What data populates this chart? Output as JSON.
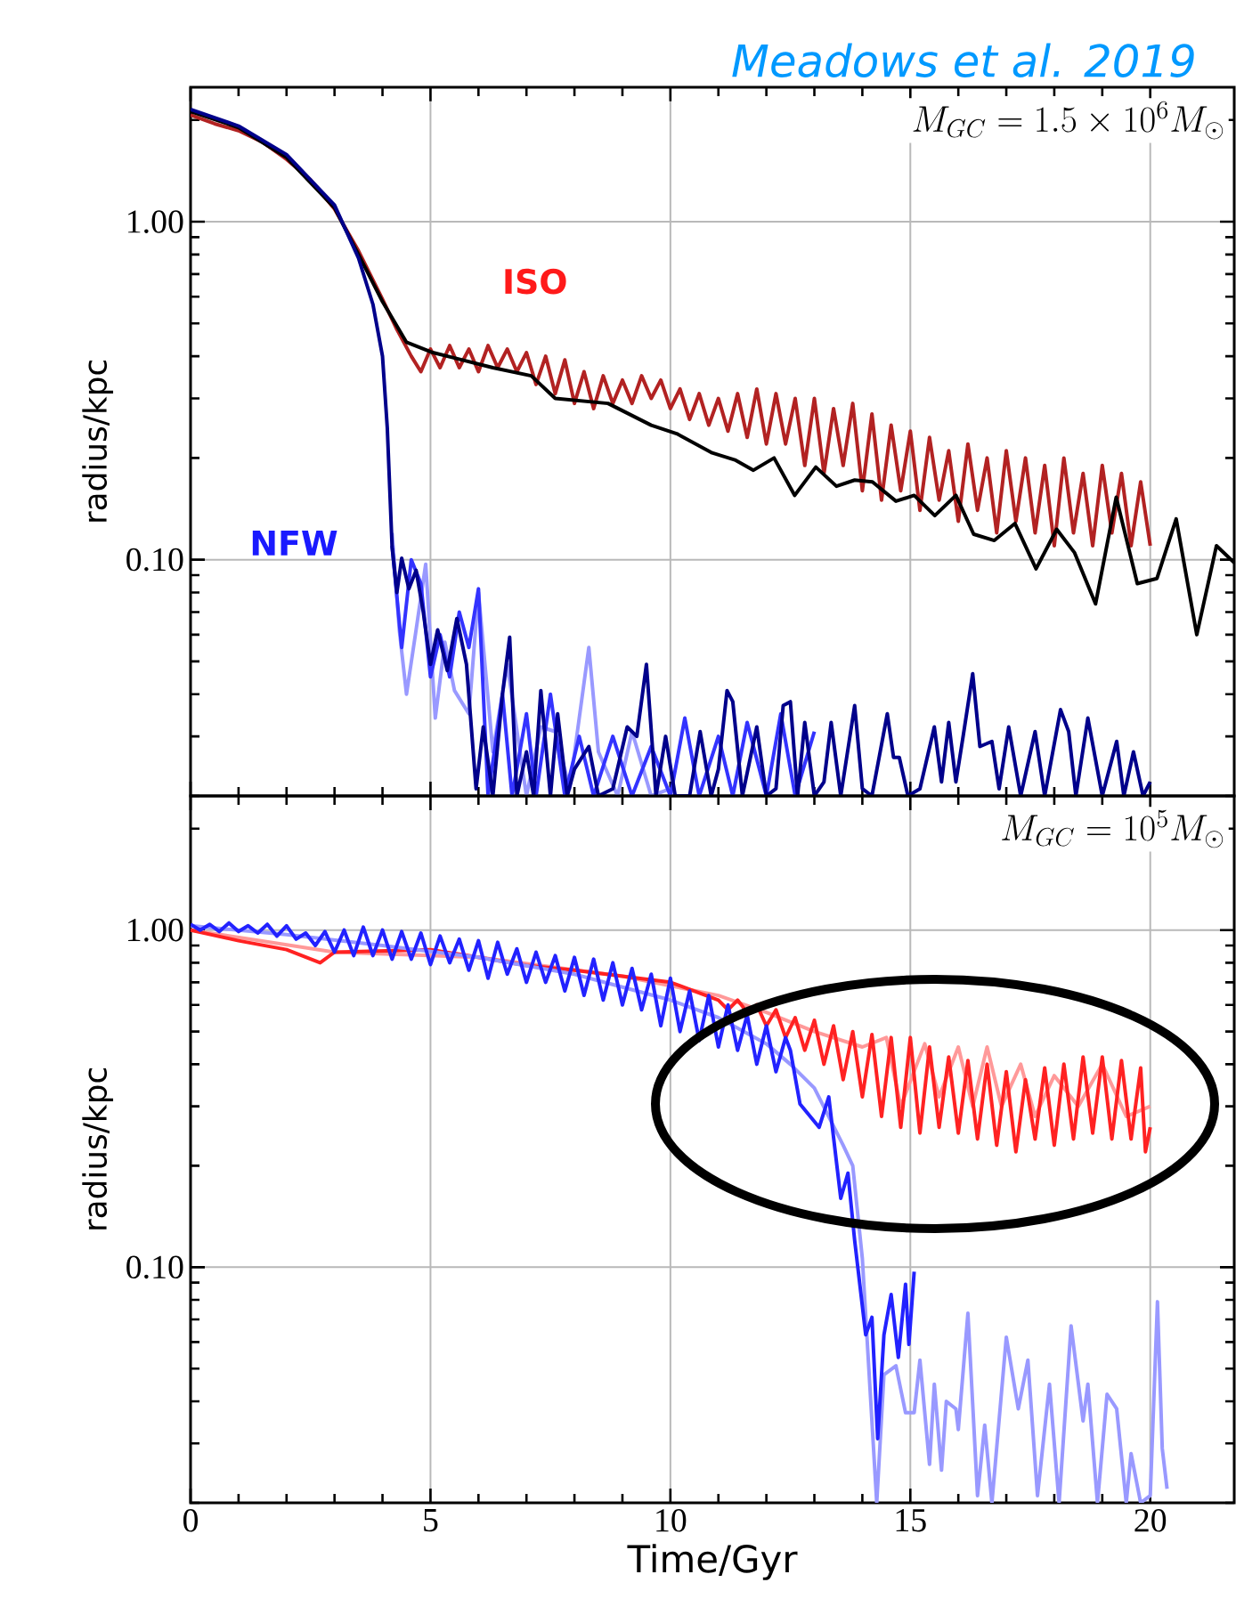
{
  "chart_data": [
    {
      "type": "line",
      "ylabel": "radius/kpc",
      "log": "y",
      "grid": true,
      "tick_labels": "y",
      "xlim": [
        0,
        21.75
      ],
      "ylim": [
        0.02,
        2.5
      ],
      "xticks": [
        0,
        5,
        10,
        15,
        20
      ],
      "yticks": [
        {
          "value": 1,
          "label": "1.00"
        },
        {
          "value": 0.1,
          "label": "0.10"
        },
        {
          "value": 0.02,
          "label": null
        },
        {
          "value": 0.03,
          "label": null
        },
        {
          "value": 0.04,
          "label": null
        },
        {
          "value": 0.05,
          "label": null
        },
        {
          "value": 0.06,
          "label": null
        },
        {
          "value": 0.07,
          "label": null
        },
        {
          "value": 0.08,
          "label": null
        },
        {
          "value": 0.09,
          "label": null
        },
        {
          "value": 0.2,
          "label": null
        },
        {
          "value": 0.3,
          "label": null
        },
        {
          "value": 0.4,
          "label": null
        },
        {
          "value": 0.5,
          "label": null
        },
        {
          "value": 0.6,
          "label": null
        },
        {
          "value": 0.7,
          "label": null
        },
        {
          "value": 0.8,
          "label": null
        },
        {
          "value": 0.9,
          "label": null
        },
        {
          "value": 2,
          "label": null
        }
      ],
      "annotations": [
        "M_{GC} = 1.5 \\times 10^6 M_\\odot",
        "Meadows et al. 2019",
        "ISO",
        "NFW"
      ],
      "series": [
        {
          "color": "#b22222",
          "x": [
            0,
            0.5,
            1,
            1.5,
            2,
            2.5,
            3,
            3.5,
            4,
            4.3,
            4.6,
            4.8,
            5.0,
            5.2,
            5.4,
            5.6,
            5.8,
            6.0,
            6.2,
            6.4,
            6.6,
            6.8,
            7.0,
            7.2,
            7.4,
            7.6,
            7.8,
            8.0,
            8.2,
            8.4,
            8.6,
            8.8,
            9.0,
            9.2,
            9.4,
            9.6,
            9.8,
            10.0,
            10.2,
            10.4,
            10.6,
            10.8,
            11.0,
            11.2,
            11.4,
            11.6,
            11.8,
            12.0,
            12.2,
            12.4,
            12.6,
            12.8,
            13.0,
            13.2,
            13.4,
            13.6,
            13.8,
            14.0,
            14.2,
            14.4,
            14.6,
            14.8,
            15.0,
            15.2,
            15.4,
            15.6,
            15.8,
            16.0,
            16.2,
            16.4,
            16.6,
            16.8,
            17.0,
            17.2,
            17.4,
            17.6,
            17.8,
            18.0,
            18.2,
            18.4,
            18.6,
            18.8,
            19.0,
            19.2,
            19.4,
            19.6,
            19.8,
            20.0
          ],
          "values": [
            2.07,
            1.95,
            1.86,
            1.72,
            1.53,
            1.33,
            1.09,
            0.82,
            0.59,
            0.48,
            0.4,
            0.36,
            0.42,
            0.37,
            0.43,
            0.37,
            0.42,
            0.36,
            0.43,
            0.37,
            0.42,
            0.36,
            0.41,
            0.33,
            0.4,
            0.31,
            0.39,
            0.29,
            0.36,
            0.28,
            0.35,
            0.29,
            0.34,
            0.29,
            0.35,
            0.3,
            0.34,
            0.28,
            0.32,
            0.26,
            0.31,
            0.25,
            0.3,
            0.24,
            0.31,
            0.23,
            0.32,
            0.22,
            0.31,
            0.22,
            0.3,
            0.19,
            0.3,
            0.18,
            0.28,
            0.19,
            0.29,
            0.16,
            0.27,
            0.15,
            0.25,
            0.16,
            0.24,
            0.14,
            0.23,
            0.15,
            0.21,
            0.13,
            0.22,
            0.14,
            0.2,
            0.12,
            0.21,
            0.13,
            0.2,
            0.12,
            0.19,
            0.11,
            0.2,
            0.12,
            0.18,
            0.11,
            0.19,
            0.12,
            0.18,
            0.11,
            0.17,
            0.11
          ]
        },
        {
          "color": "#000000",
          "x": [
            0,
            1,
            2,
            3,
            3.5,
            4,
            4.5,
            5.05,
            6.3,
            7.1,
            7.6,
            8.7,
            9.6,
            10.13,
            10.87,
            11.36,
            11.73,
            12.16,
            12.59,
            13.03,
            13.46,
            13.84,
            14.21,
            14.7,
            15.08,
            15.51,
            15.95,
            16.32,
            16.75,
            17.18,
            17.62,
            18.05,
            18.42,
            18.86,
            19.29,
            19.73,
            20.14,
            20.54,
            20.97,
            21.38,
            21.75
          ],
          "values": [
            2.12,
            1.9,
            1.55,
            1.1,
            0.8,
            0.58,
            0.44,
            0.41,
            0.37,
            0.35,
            0.3,
            0.29,
            0.25,
            0.236,
            0.207,
            0.197,
            0.184,
            0.2,
            0.155,
            0.188,
            0.165,
            0.172,
            0.17,
            0.149,
            0.155,
            0.135,
            0.155,
            0.119,
            0.114,
            0.128,
            0.094,
            0.123,
            0.105,
            0.074,
            0.153,
            0.085,
            0.088,
            0.132,
            0.06,
            0.11,
            0.098
          ]
        },
        {
          "color": "#9999ff",
          "x": [
            4.2,
            4.35,
            4.5,
            4.7,
            4.9,
            5.1,
            5.3,
            5.5,
            5.8,
            6.0,
            6.3,
            6.6,
            7.0,
            7.3,
            7.6,
            7.9,
            8.3,
            8.5,
            8.9,
            9.2,
            9.6,
            10.0
          ],
          "values": [
            0.12,
            0.062,
            0.04,
            0.062,
            0.097,
            0.034,
            0.057,
            0.041,
            0.035,
            0.08,
            0.027,
            0.049,
            0.02,
            0.032,
            0.031,
            0.021,
            0.055,
            0.027,
            0.02,
            0.031,
            0.02,
            0.021
          ]
        },
        {
          "color": "#3333ff",
          "x": [
            4.2,
            4.4,
            4.6,
            4.8,
            5.0,
            5.2,
            5.4,
            5.6,
            5.8,
            6.0,
            6.2,
            6.5,
            6.7,
            7.0,
            7.2,
            7.5,
            7.8,
            8.1,
            8.4,
            8.8,
            9.2,
            9.6,
            10.0,
            10.3,
            10.6,
            11.0,
            11.3,
            11.6,
            12.0,
            12.3,
            12.6,
            13.0
          ],
          "values": [
            0.11,
            0.055,
            0.1,
            0.085,
            0.045,
            0.06,
            0.045,
            0.07,
            0.055,
            0.082,
            0.02,
            0.04,
            0.02,
            0.035,
            0.02,
            0.04,
            0.02,
            0.03,
            0.02,
            0.03,
            0.02,
            0.028,
            0.02,
            0.034,
            0.02,
            0.03,
            0.02,
            0.033,
            0.02,
            0.035,
            0.02,
            0.031
          ]
        },
        {
          "color": "#00008b",
          "x": [
            0,
            1,
            2,
            3,
            3.5,
            3.8,
            4.0,
            4.1,
            4.2,
            4.3,
            4.4,
            4.55,
            4.7,
            4.85,
            5.0,
            5.15,
            5.35,
            5.55,
            5.75,
            5.95,
            6.1,
            6.3,
            6.5,
            6.65,
            6.8,
            7.0,
            7.15,
            7.3,
            7.5,
            7.65,
            7.85,
            8.0,
            8.3,
            8.5,
            8.8,
            9.1,
            9.3,
            9.5,
            9.7,
            9.9,
            10.1,
            10.4,
            10.62,
            10.85,
            11.0,
            11.18,
            11.3,
            11.5,
            11.8,
            12.0,
            12.2,
            12.35,
            12.5,
            12.65,
            12.8,
            13.0,
            13.2,
            13.35,
            13.55,
            13.84,
            14.0,
            14.2,
            14.52,
            14.65,
            14.77,
            14.95,
            15.2,
            15.5,
            15.65,
            15.8,
            15.95,
            16.1,
            16.3,
            16.45,
            16.7,
            16.85,
            17.05,
            17.3,
            17.6,
            17.8,
            18.13,
            18.3,
            18.45,
            18.7,
            19.0,
            19.3,
            19.45,
            19.65,
            19.85,
            20.0
          ],
          "values": [
            2.15,
            1.92,
            1.58,
            1.12,
            0.78,
            0.57,
            0.4,
            0.245,
            0.109,
            0.08,
            0.101,
            0.082,
            0.093,
            0.07,
            0.049,
            0.062,
            0.047,
            0.067,
            0.049,
            0.021,
            0.032,
            0.02,
            0.04,
            0.059,
            0.02,
            0.027,
            0.02,
            0.041,
            0.02,
            0.035,
            0.02,
            0.024,
            0.028,
            0.02,
            0.021,
            0.032,
            0.03,
            0.049,
            0.02,
            0.03,
            0.02,
            0.02,
            0.031,
            0.02,
            0.024,
            0.041,
            0.038,
            0.02,
            0.032,
            0.02,
            0.021,
            0.037,
            0.038,
            0.02,
            0.033,
            0.02,
            0.022,
            0.033,
            0.02,
            0.037,
            0.021,
            0.02,
            0.035,
            0.026,
            0.026,
            0.02,
            0.021,
            0.032,
            0.022,
            0.033,
            0.022,
            0.03,
            0.046,
            0.028,
            0.029,
            0.021,
            0.032,
            0.02,
            0.031,
            0.02,
            0.036,
            0.031,
            0.02,
            0.034,
            0.02,
            0.029,
            0.02,
            0.027,
            0.02,
            0.022
          ]
        }
      ]
    },
    {
      "type": "line",
      "ylabel": "radius/kpc",
      "xlabel": "Time/Gyr",
      "log": "y",
      "grid": true,
      "xlim": [
        0,
        21.75
      ],
      "ylim": [
        0.02,
        2.5
      ],
      "xticks": [
        0,
        5,
        10,
        15,
        20
      ],
      "yticks": [
        {
          "value": 1,
          "label": "1.00"
        },
        {
          "value": 0.1,
          "label": "0.10"
        },
        {
          "value": 0.02,
          "label": null
        },
        {
          "value": 0.03,
          "label": null
        },
        {
          "value": 0.04,
          "label": null
        },
        {
          "value": 0.05,
          "label": null
        },
        {
          "value": 0.06,
          "label": null
        },
        {
          "value": 0.07,
          "label": null
        },
        {
          "value": 0.08,
          "label": null
        },
        {
          "value": 0.09,
          "label": null
        },
        {
          "value": 0.2,
          "label": null
        },
        {
          "value": 0.3,
          "label": null
        },
        {
          "value": 0.4,
          "label": null
        },
        {
          "value": 0.5,
          "label": null
        },
        {
          "value": 0.6,
          "label": null
        },
        {
          "value": 0.7,
          "label": null
        },
        {
          "value": 0.8,
          "label": null
        },
        {
          "value": 0.9,
          "label": null
        },
        {
          "value": 2,
          "label": null
        }
      ],
      "annotations": [
        "M_{GC} = 10^5 M_\\odot"
      ],
      "series": [
        {
          "color": "#ff9999",
          "x": [
            0,
            3,
            6,
            9,
            11,
            12,
            13,
            14,
            14.5,
            14.8,
            15.3,
            15.6,
            16.0,
            16.3,
            16.6,
            16.9,
            17.3,
            17.6,
            18,
            18.5,
            19,
            19.5,
            20
          ],
          "values": [
            1.0,
            0.86,
            0.83,
            0.73,
            0.64,
            0.57,
            0.5,
            0.45,
            0.48,
            0.3,
            0.46,
            0.32,
            0.45,
            0.3,
            0.45,
            0.3,
            0.4,
            0.28,
            0.37,
            0.3,
            0.4,
            0.28,
            0.3
          ]
        },
        {
          "color": "#ff2222",
          "x": [
            0,
            1,
            2,
            2.7,
            3,
            5,
            6,
            7,
            8,
            9,
            10,
            11.0,
            11.2,
            11.4,
            11.6,
            11.8,
            12.0,
            12.2,
            12.4,
            12.6,
            12.8,
            13.0,
            13.2,
            13.4,
            13.6,
            13.8,
            14.0,
            14.2,
            14.4,
            14.6,
            14.8,
            15.0,
            15.2,
            15.4,
            15.6,
            15.8,
            16.0,
            16.2,
            16.4,
            16.6,
            16.8,
            17.0,
            17.2,
            17.4,
            17.6,
            17.8,
            18.0,
            18.2,
            18.4,
            18.6,
            18.8,
            19.0,
            19.2,
            19.4,
            19.6,
            19.8,
            19.9,
            20.0
          ],
          "values": [
            1.0,
            0.93,
            0.875,
            0.8,
            0.86,
            0.875,
            0.83,
            0.785,
            0.76,
            0.73,
            0.7,
            0.62,
            0.58,
            0.62,
            0.57,
            0.6,
            0.52,
            0.58,
            0.48,
            0.55,
            0.44,
            0.54,
            0.4,
            0.52,
            0.36,
            0.5,
            0.32,
            0.49,
            0.28,
            0.48,
            0.26,
            0.48,
            0.25,
            0.45,
            0.26,
            0.42,
            0.25,
            0.41,
            0.24,
            0.4,
            0.23,
            0.38,
            0.22,
            0.36,
            0.24,
            0.39,
            0.23,
            0.4,
            0.24,
            0.42,
            0.25,
            0.42,
            0.24,
            0.41,
            0.24,
            0.39,
            0.22,
            0.26
          ]
        },
        {
          "color": "#9999ff",
          "x": [
            0,
            2,
            4,
            6,
            8,
            10,
            11,
            12,
            12.5,
            13.0,
            13.6,
            13.8,
            14.0,
            14.3,
            14.45,
            14.7,
            14.9,
            15.08,
            15.2,
            15.4,
            15.5,
            15.65,
            15.75,
            15.95,
            16.0,
            16.2,
            16.4,
            16.55,
            16.7,
            17.0,
            17.25,
            17.45,
            17.65,
            17.9,
            18.1,
            18.35,
            18.6,
            18.7,
            18.9,
            19.1,
            19.3,
            19.5,
            19.6,
            19.8,
            20.0,
            20.15,
            20.25,
            20.35
          ],
          "values": [
            1.03,
            0.97,
            0.9,
            0.83,
            0.74,
            0.62,
            0.55,
            0.46,
            0.4,
            0.34,
            0.23,
            0.2,
            0.106,
            0.02,
            0.048,
            0.051,
            0.037,
            0.037,
            0.053,
            0.026,
            0.045,
            0.025,
            0.04,
            0.038,
            0.033,
            0.073,
            0.021,
            0.034,
            0.02,
            0.062,
            0.038,
            0.053,
            0.021,
            0.045,
            0.02,
            0.067,
            0.035,
            0.045,
            0.02,
            0.042,
            0.038,
            0.02,
            0.028,
            0.02,
            0.021,
            0.079,
            0.029,
            0.022
          ]
        },
        {
          "color": "#2222ff",
          "x": [
            0.0,
            0.2,
            0.4,
            0.6,
            0.8,
            1.0,
            1.2,
            1.4,
            1.6,
            1.8,
            2.0,
            2.2,
            2.4,
            2.6,
            2.8,
            3.0,
            3.2,
            3.4,
            3.6,
            3.8,
            4.0,
            4.2,
            4.4,
            4.6,
            4.8,
            5.0,
            5.2,
            5.4,
            5.6,
            5.8,
            6.0,
            6.2,
            6.4,
            6.6,
            6.8,
            7.0,
            7.2,
            7.4,
            7.6,
            7.8,
            8.0,
            8.2,
            8.4,
            8.6,
            8.8,
            9.0,
            9.2,
            9.4,
            9.6,
            9.8,
            10.0,
            10.2,
            10.4,
            10.6,
            10.8,
            11.0,
            11.2,
            11.4,
            11.6,
            11.8,
            12.0,
            12.2,
            12.4,
            12.5,
            12.7,
            13.1,
            13.3,
            13.55,
            13.7,
            13.84,
            14.07,
            14.2,
            14.32,
            14.45,
            14.6,
            14.75,
            14.9,
            14.97,
            15.08
          ],
          "values": [
            1.04,
            1.0,
            1.04,
            0.99,
            1.05,
            0.99,
            1.03,
            0.98,
            1.04,
            0.96,
            1.03,
            0.94,
            0.98,
            0.9,
            0.99,
            0.86,
            1.0,
            0.84,
            1.02,
            0.84,
            1.0,
            0.82,
            0.99,
            0.82,
            0.98,
            0.79,
            0.96,
            0.8,
            0.94,
            0.76,
            0.93,
            0.72,
            0.92,
            0.74,
            0.88,
            0.7,
            0.86,
            0.7,
            0.84,
            0.66,
            0.83,
            0.64,
            0.82,
            0.62,
            0.8,
            0.6,
            0.77,
            0.58,
            0.74,
            0.52,
            0.72,
            0.5,
            0.66,
            0.47,
            0.64,
            0.45,
            0.6,
            0.44,
            0.56,
            0.4,
            0.52,
            0.38,
            0.48,
            0.44,
            0.305,
            0.26,
            0.32,
            0.16,
            0.19,
            0.12,
            0.063,
            0.071,
            0.031,
            0.063,
            0.083,
            0.054,
            0.089,
            0.059,
            0.097
          ]
        }
      ]
    }
  ]
}
